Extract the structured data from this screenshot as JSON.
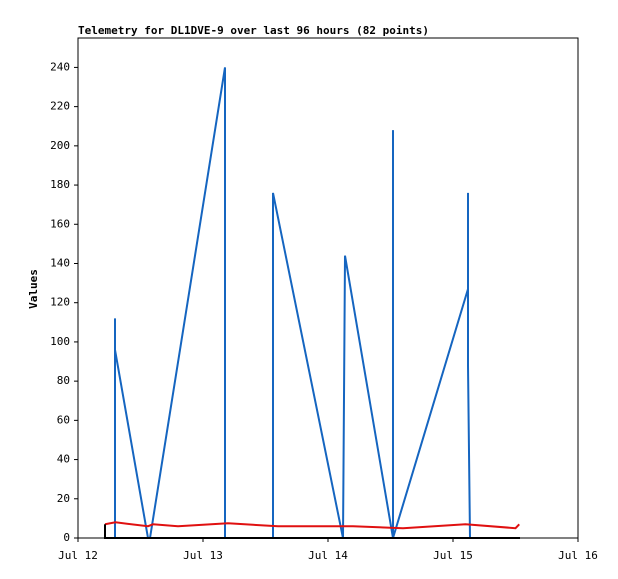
{
  "chart_data": {
    "type": "line",
    "title": "Telemetry for DL1DVE-9 over last 96 hours (82 points)",
    "y_label": "Values",
    "xlim": [
      12,
      16
    ],
    "xticks": [
      {
        "value": 12,
        "label": "Jul 12"
      },
      {
        "value": 13,
        "label": "Jul 13"
      },
      {
        "value": 14,
        "label": "Jul 14"
      },
      {
        "value": 15,
        "label": "Jul 15"
      },
      {
        "value": 16,
        "label": "Jul 16"
      }
    ],
    "ylim": [
      0,
      255
    ],
    "yticks": [
      0,
      20,
      40,
      60,
      80,
      100,
      120,
      140,
      160,
      180,
      200,
      220,
      240
    ],
    "series": [
      {
        "color": "#1565c0",
        "x": [
          12.296,
          12.296,
          12.296,
          12.56,
          12.576,
          13.176,
          13.176,
          13.56,
          13.56,
          14.12,
          14.136,
          14.52,
          14.52,
          14.52,
          15.12,
          15.12,
          15.12,
          15.136
        ],
        "values": [
          0,
          112,
          96,
          0,
          0,
          240,
          0,
          0,
          176,
          0,
          144,
          0,
          208,
          0,
          127,
          176,
          88,
          0
        ]
      },
      {
        "color": "#e01010",
        "x": [
          12.216,
          12.3,
          12.56,
          12.6,
          12.8,
          13.2,
          13.6,
          14.2,
          14.6,
          15.1,
          15.5,
          15.53
        ],
        "values": [
          7,
          8,
          6,
          7,
          6,
          7.5,
          6,
          6,
          5,
          7,
          5,
          7
        ]
      },
      {
        "color": "#000000",
        "x": [
          12.216,
          12.216,
          15.536
        ],
        "values": [
          7,
          0,
          0
        ]
      }
    ]
  }
}
